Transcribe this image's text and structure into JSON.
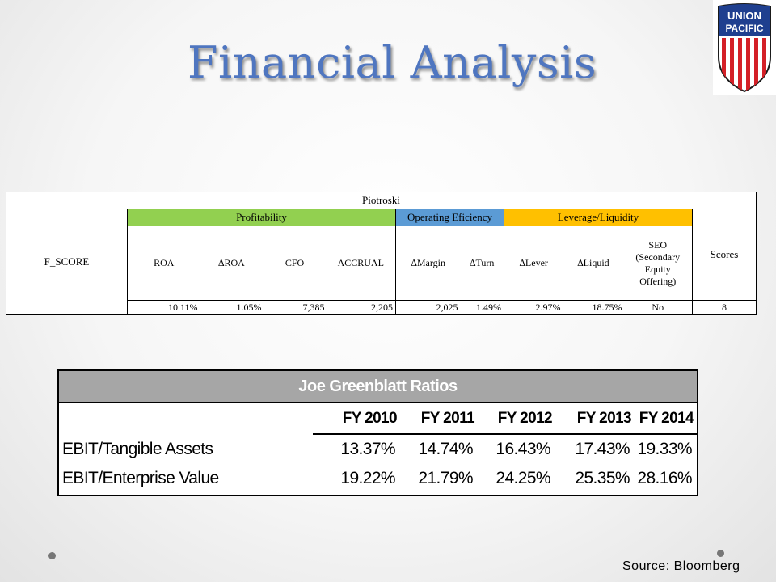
{
  "title": "Financial Analysis",
  "logo": {
    "line1": "UNION",
    "line2": "PACIFIC"
  },
  "colors": {
    "title": "#4f76c0",
    "profitability": "#92d050",
    "operating": "#5b9bd5",
    "leverage": "#ffc000"
  },
  "piotroski": {
    "title": "Piotroski",
    "fscore_label": "F_SCORE",
    "groups": {
      "profitability": "Profitability",
      "operating": "Operating Eficiency",
      "leverage": "Leverage/Liquidity"
    },
    "columns": {
      "roa": "ROA",
      "droa": "∆ROA",
      "cfo": "CFO",
      "accrual": "ACCRUAL",
      "dmargin": "∆Margin",
      "dturn": "∆Turn",
      "dlever": "∆Lever",
      "dliquid": "∆Liquid",
      "seo_1": "SEO",
      "seo_2": "(Secondary",
      "seo_3": "Equity",
      "seo_4": "Offering)",
      "scores": "Scores"
    },
    "values": {
      "roa": "10.11%",
      "droa": "1.05%",
      "cfo": "7,385",
      "accrual": "2,205",
      "dmargin": "2,025",
      "dturn": "1.49%",
      "dlever": "2.97%",
      "dliquid": "18.75%",
      "seo": "No",
      "scores": "8"
    }
  },
  "greenblatt": {
    "title": "Joe Greenblatt Ratios",
    "years": [
      "FY 2010",
      "FY 2011",
      "FY 2012",
      "FY 2013",
      "FY 2014"
    ],
    "rows": [
      {
        "label": "EBIT/Tangible Assets",
        "values": [
          "13.37%",
          "14.74%",
          "16.43%",
          "17.43%",
          "19.33%"
        ]
      },
      {
        "label": "EBIT/Enterprise Value",
        "values": [
          "19.22%",
          "21.79%",
          "24.25%",
          "25.35%",
          "28.16%"
        ]
      }
    ]
  },
  "source": "Source: Bloomberg"
}
